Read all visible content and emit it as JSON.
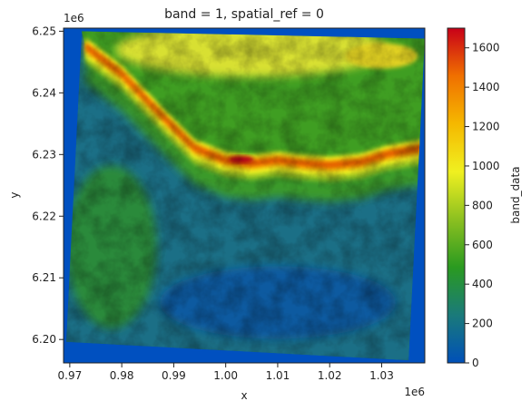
{
  "chart_data": {
    "type": "heatmap",
    "title": "band = 1, spatial_ref = 0",
    "xlabel": "x",
    "ylabel": "y",
    "x_offset_label": "1e6",
    "y_offset_label": "1e6",
    "x_ticks": [
      "0.97",
      "0.98",
      "0.99",
      "1.00",
      "1.01",
      "1.02",
      "1.03"
    ],
    "x_tick_values": [
      0.97,
      0.98,
      0.99,
      1.0,
      1.01,
      1.02,
      1.03
    ],
    "y_ticks": [
      "6.20",
      "6.21",
      "6.22",
      "6.23",
      "6.24",
      "6.25"
    ],
    "y_tick_values": [
      6.2,
      6.21,
      6.22,
      6.23,
      6.24,
      6.25
    ],
    "xlim": [
      0.9688,
      1.0383
    ],
    "ylim": [
      6.1962,
      6.2505
    ],
    "colorbar": {
      "label": "band_data",
      "ticks": [
        "0",
        "200",
        "400",
        "600",
        "800",
        "1000",
        "1200",
        "1400",
        "1600"
      ],
      "tick_values": [
        0,
        200,
        400,
        600,
        800,
        1000,
        1200,
        1400,
        1600
      ],
      "range": [
        0,
        1700
      ],
      "colormap": [
        "#0050b8",
        "#1a7a7a",
        "#2a9a20",
        "#8cc020",
        "#f0f020",
        "#f5b800",
        "#f07000",
        "#c80018"
      ]
    },
    "nodata_color": "#0050c0",
    "data_corners": {
      "top_left": [
        0.9723,
        6.25
      ],
      "top_right": [
        1.0383,
        6.2488
      ],
      "bottom_right": [
        1.0352,
        6.1966
      ],
      "bottom_left": [
        0.9693,
        6.1996
      ]
    },
    "ridge_line": [
      [
        0.973,
        6.2475
      ],
      [
        0.98,
        6.243
      ],
      [
        0.988,
        6.236
      ],
      [
        0.994,
        6.231
      ],
      [
        1.0,
        6.229
      ],
      [
        1.005,
        6.2285
      ],
      [
        1.01,
        6.229
      ],
      [
        1.015,
        6.2285
      ],
      [
        1.02,
        6.2282
      ],
      [
        1.026,
        6.2287
      ],
      [
        1.031,
        6.23
      ],
      [
        1.038,
        6.231
      ]
    ],
    "peak_value": 1700,
    "peak_location": [
      1.003,
      6.2292
    ]
  }
}
